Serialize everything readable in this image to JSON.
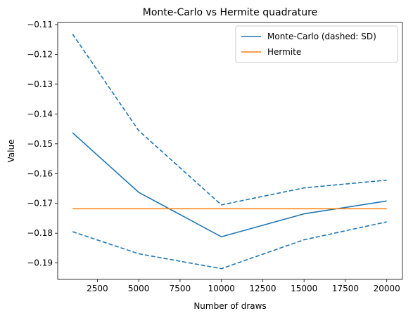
{
  "chart_data": {
    "type": "line",
    "title": "Monte-Carlo vs Hermite quadrature",
    "xlabel": "Number of draws",
    "ylabel": "Value",
    "xlim": [
      100,
      20950
    ],
    "ylim": [
      -0.1955,
      -0.1093
    ],
    "xticks": [
      2500,
      5000,
      7500,
      10000,
      12500,
      15000,
      17500,
      20000
    ],
    "yticks": [
      -0.19,
      -0.18,
      -0.17,
      -0.16,
      -0.15,
      -0.14,
      -0.13,
      -0.12,
      -0.11
    ],
    "grid": false,
    "legend_position": "top-right",
    "x": [
      1000,
      5000,
      10000,
      15000,
      20000
    ],
    "series": [
      {
        "name": "Monte-Carlo (dashed: SD)",
        "legend": true,
        "style": "solid",
        "color": "#1f77b4",
        "values": [
          -0.1463,
          -0.1663,
          -0.1812,
          -0.1735,
          -0.1692
        ]
      },
      {
        "name": "",
        "legend": false,
        "style": "dashed",
        "color": "#1f77b4",
        "values": [
          -0.1132,
          -0.1456,
          -0.1705,
          -0.1648,
          -0.1622
        ]
      },
      {
        "name": "",
        "legend": false,
        "style": "dashed",
        "color": "#1f77b4",
        "values": [
          -0.1795,
          -0.1869,
          -0.1919,
          -0.1822,
          -0.1762
        ]
      },
      {
        "name": "Hermite",
        "legend": true,
        "style": "solid",
        "color": "#ff7f0e",
        "values": [
          -0.1718,
          -0.1718,
          -0.1718,
          -0.1718,
          -0.1718
        ]
      }
    ]
  }
}
